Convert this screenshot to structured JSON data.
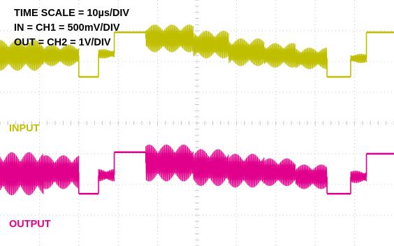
{
  "settings": {
    "time_scale": "TIME SCALE = 10µs/DIV",
    "in_channel": "IN = CH1 = 500mV/DIV",
    "out_channel": "OUT = CH2 = 1V/DIV"
  },
  "colors": {
    "background": "#ffffff",
    "grid": "#c8c8c8",
    "ch1": "#bfbf00",
    "ch2": "#e0008c",
    "text": "#000000"
  },
  "chart_data": {
    "type": "line",
    "x_divisions": 10,
    "y_divisions": 8,
    "x_unit": "µs",
    "x_per_division": 10,
    "x_range": [
      0,
      100
    ],
    "grid": true,
    "series": [
      {
        "name": "INPUT",
        "label": "INPUT",
        "channel": "CH1",
        "volts_per_division": 0.5,
        "color": "#bfbf00",
        "baseline_div": 2.35,
        "segments": [
          {
            "x0": 0.0,
            "x1": 11.0,
            "center_div": 2.2,
            "amp_div": 0.5
          },
          {
            "x0": 11.0,
            "x1": 20.0,
            "center_div": 2.2,
            "amp_div": 0.35
          },
          {
            "x0": 20.0,
            "x1": 25.0,
            "center_div": 1.5,
            "amp_div": 0.0
          },
          {
            "x0": 25.0,
            "x1": 29.0,
            "center_div": 2.25,
            "amp_div": 0.15
          },
          {
            "x0": 29.0,
            "x1": 37.0,
            "center_div": 2.95,
            "amp_div": 0.0
          },
          {
            "x0": 37.0,
            "x1": 49.0,
            "center_div": 2.75,
            "amp_div": 0.45
          },
          {
            "x0": 49.0,
            "x1": 58.0,
            "center_div": 2.55,
            "amp_div": 0.45
          },
          {
            "x0": 58.0,
            "x1": 67.0,
            "center_div": 2.3,
            "amp_div": 0.45
          },
          {
            "x0": 67.0,
            "x1": 75.0,
            "center_div": 2.2,
            "amp_div": 0.4
          },
          {
            "x0": 75.0,
            "x1": 83.0,
            "center_div": 2.1,
            "amp_div": 0.35
          },
          {
            "x0": 83.0,
            "x1": 89.0,
            "center_div": 1.5,
            "amp_div": 0.0
          },
          {
            "x0": 89.0,
            "x1": 93.0,
            "center_div": 2.1,
            "amp_div": 0.15
          },
          {
            "x0": 93.0,
            "x1": 100.0,
            "center_div": 2.95,
            "amp_div": 0.0
          }
        ]
      },
      {
        "name": "OUTPUT",
        "label": "OUTPUT",
        "channel": "CH2",
        "volts_per_division": 1,
        "color": "#e0008c",
        "baseline_div": -1.75,
        "segments": [
          {
            "x0": 0.0,
            "x1": 11.0,
            "center_div": -1.65,
            "amp_div": 0.7
          },
          {
            "x0": 11.0,
            "x1": 20.0,
            "center_div": -1.6,
            "amp_div": 0.55
          },
          {
            "x0": 20.0,
            "x1": 25.0,
            "center_div": -2.3,
            "amp_div": 0.0
          },
          {
            "x0": 25.0,
            "x1": 29.0,
            "center_div": -1.7,
            "amp_div": 0.2
          },
          {
            "x0": 29.0,
            "x1": 37.0,
            "center_div": -0.95,
            "amp_div": 0.0
          },
          {
            "x0": 37.0,
            "x1": 49.0,
            "center_div": -1.3,
            "amp_div": 0.6
          },
          {
            "x0": 49.0,
            "x1": 58.0,
            "center_div": -1.45,
            "amp_div": 0.6
          },
          {
            "x0": 58.0,
            "x1": 67.0,
            "center_div": -1.55,
            "amp_div": 0.55
          },
          {
            "x0": 67.0,
            "x1": 75.0,
            "center_div": -1.6,
            "amp_div": 0.45
          },
          {
            "x0": 75.0,
            "x1": 83.0,
            "center_div": -1.75,
            "amp_div": 0.4
          },
          {
            "x0": 83.0,
            "x1": 89.0,
            "center_div": -2.3,
            "amp_div": 0.0
          },
          {
            "x0": 89.0,
            "x1": 93.0,
            "center_div": -1.75,
            "amp_div": 0.2
          },
          {
            "x0": 93.0,
            "x1": 100.0,
            "center_div": -1.0,
            "amp_div": 0.0
          }
        ]
      }
    ]
  }
}
